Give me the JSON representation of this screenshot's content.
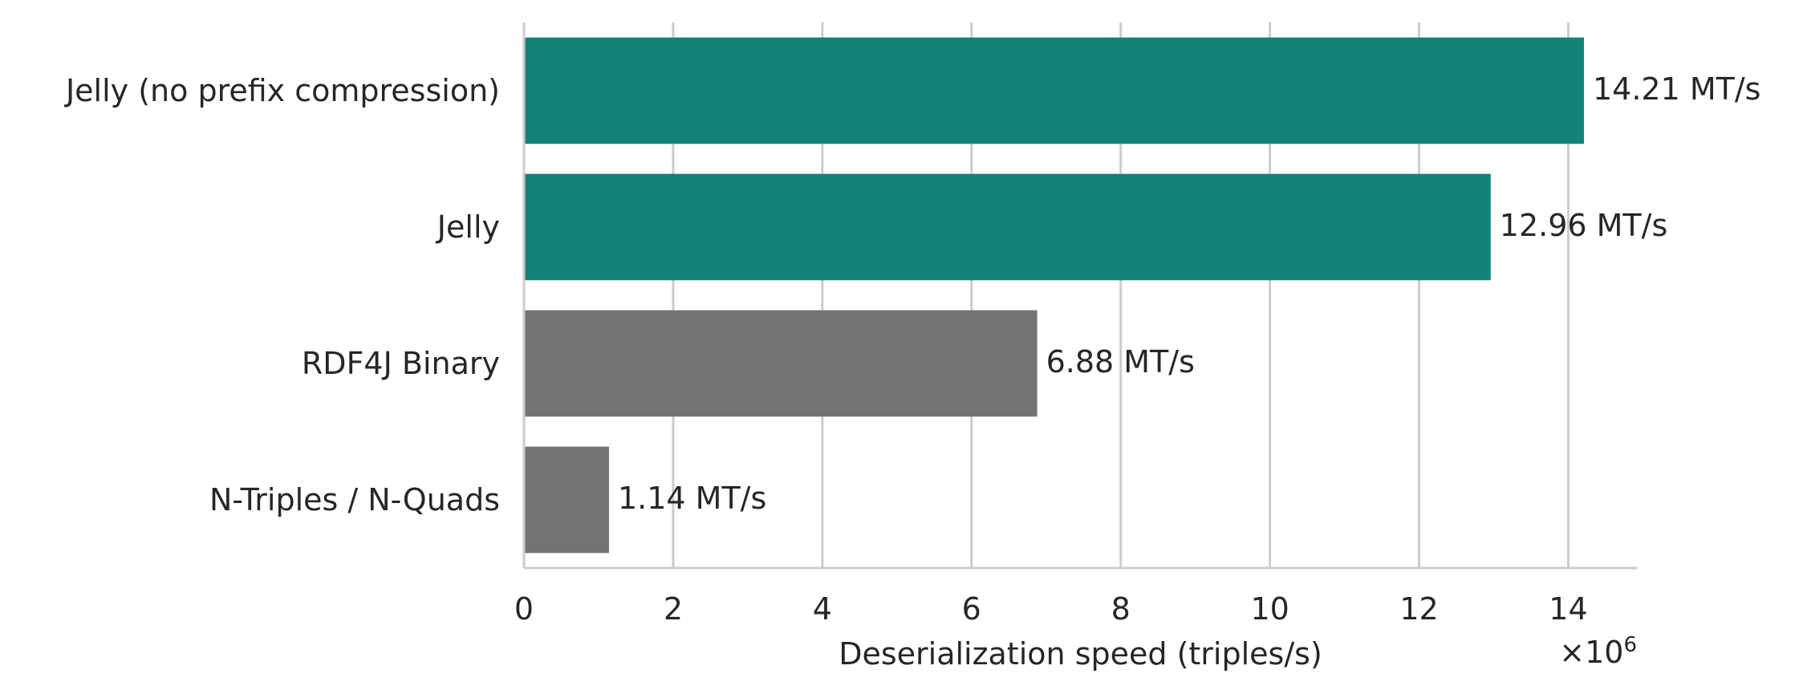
{
  "chart_data": {
    "type": "bar",
    "orientation": "horizontal",
    "categories": [
      "Jelly (no prefix compression)",
      "Jelly",
      "RDF4J Binary",
      "N-Triples / N-Quads"
    ],
    "values": [
      14210000,
      12960000,
      6880000,
      1140000
    ],
    "value_labels": [
      "14.21 MT/s",
      "12.96 MT/s",
      "6.88 MT/s",
      "1.14 MT/s"
    ],
    "bar_colors": [
      "#138377",
      "#138377",
      "#737373",
      "#737373"
    ],
    "xlabel": "Deserialization speed (triples/s)",
    "ylabel": "",
    "xlim": [
      0,
      14920000
    ],
    "x_ticks": [
      0,
      2,
      4,
      6,
      8,
      10,
      12,
      14
    ],
    "x_tick_labels": [
      "0",
      "2",
      "4",
      "6",
      "8",
      "10",
      "12",
      "14"
    ],
    "x_offset_label": {
      "base": "×10",
      "exponent": "6"
    },
    "grid": "vertical",
    "legend": "none"
  }
}
